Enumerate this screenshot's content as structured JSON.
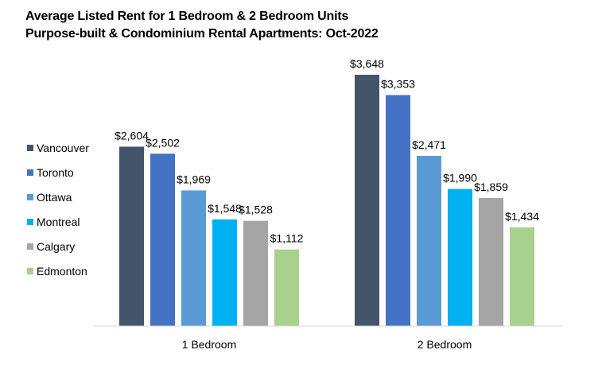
{
  "title": {
    "line1": "Average Listed Rent for 1 Bedroom & 2 Bedroom Units",
    "line2": "Purpose-built & Condominium Rental Apartments: Oct-2022"
  },
  "chart_data": {
    "type": "bar",
    "categories": [
      "1 Bedroom",
      "2 Bedroom"
    ],
    "series": [
      {
        "name": "Vancouver",
        "values": [
          2604,
          3648
        ],
        "labels": [
          "$2,604",
          "$3,648"
        ],
        "color": "#44546A"
      },
      {
        "name": "Toronto",
        "values": [
          2502,
          3353
        ],
        "labels": [
          "$2,502",
          "$3,353"
        ],
        "color": "#4472C4"
      },
      {
        "name": "Ottawa",
        "values": [
          1969,
          2471
        ],
        "labels": [
          "$1,969",
          "$2,471"
        ],
        "color": "#5B9BD5"
      },
      {
        "name": "Montreal",
        "values": [
          1548,
          1990
        ],
        "labels": [
          "$1,548",
          "$1,990"
        ],
        "color": "#00B0F0"
      },
      {
        "name": "Calgary",
        "values": [
          1528,
          1859
        ],
        "labels": [
          "$1,528",
          "$1,859"
        ],
        "color": "#A5A5A5"
      },
      {
        "name": "Edmonton",
        "values": [
          1112,
          1434
        ],
        "labels": [
          "$1,112",
          "$1,434"
        ],
        "color": "#A9D18E"
      }
    ],
    "ylim": [
      0,
      3648
    ],
    "legend_position": "left",
    "grid": false
  }
}
